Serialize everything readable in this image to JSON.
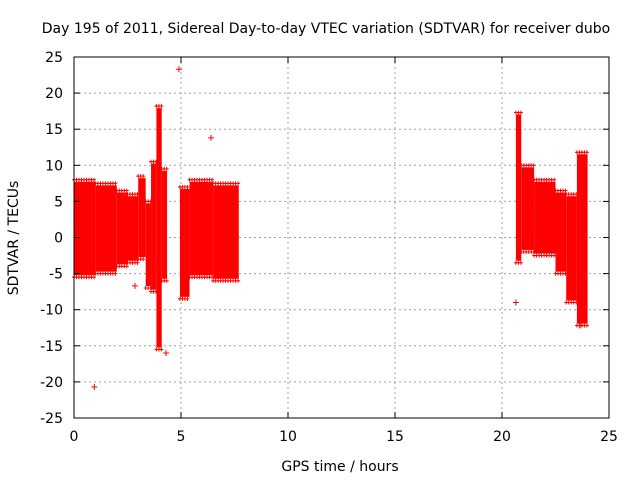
{
  "chart_data": {
    "type": "scatter",
    "title": "Day 195 of 2011, Sidereal Day-to-day VTEC variation (SDTVAR) for receiver dubo",
    "xlabel": "GPS time / hours",
    "ylabel": "SDTVAR / TECUs",
    "xlim": [
      0,
      25
    ],
    "ylim": [
      -25,
      25
    ],
    "xticks": [
      0,
      5,
      10,
      15,
      20,
      25
    ],
    "yticks": [
      -25,
      -20,
      -15,
      -10,
      -5,
      0,
      5,
      10,
      15,
      20,
      25
    ],
    "grid": true,
    "marker": "+",
    "color": "#ff0000",
    "dense_bands": [
      {
        "x_start": 0.0,
        "x_end": 1.0,
        "y_min": -5.5,
        "y_max": 8.0
      },
      {
        "x_start": 1.0,
        "x_end": 2.0,
        "y_min": -5.0,
        "y_max": 7.5
      },
      {
        "x_start": 2.0,
        "x_end": 2.5,
        "y_min": -4.0,
        "y_max": 6.5
      },
      {
        "x_start": 2.5,
        "x_end": 3.0,
        "y_min": -3.5,
        "y_max": 6.0
      },
      {
        "x_start": 3.0,
        "x_end": 3.35,
        "y_min": -3.0,
        "y_max": 8.5
      },
      {
        "x_start": 3.35,
        "x_end": 3.6,
        "y_min": -7.0,
        "y_max": 5.0
      },
      {
        "x_start": 3.6,
        "x_end": 3.85,
        "y_min": -7.5,
        "y_max": 10.5
      },
      {
        "x_start": 3.85,
        "x_end": 4.1,
        "y_min": -15.5,
        "y_max": 18.2
      },
      {
        "x_start": 4.1,
        "x_end": 4.35,
        "y_min": -6.0,
        "y_max": 9.5
      },
      {
        "x_start": 4.95,
        "x_end": 5.4,
        "y_min": -8.5,
        "y_max": 7.0
      },
      {
        "x_start": 5.4,
        "x_end": 6.5,
        "y_min": -5.5,
        "y_max": 8.0
      },
      {
        "x_start": 6.5,
        "x_end": 7.7,
        "y_min": -6.0,
        "y_max": 7.5
      },
      {
        "x_start": 20.65,
        "x_end": 20.9,
        "y_min": -3.5,
        "y_max": 17.3
      },
      {
        "x_start": 20.9,
        "x_end": 21.5,
        "y_min": -2.0,
        "y_max": 10.0
      },
      {
        "x_start": 21.5,
        "x_end": 22.5,
        "y_min": -2.5,
        "y_max": 8.0
      },
      {
        "x_start": 22.5,
        "x_end": 23.0,
        "y_min": -5.0,
        "y_max": 6.5
      },
      {
        "x_start": 23.0,
        "x_end": 23.5,
        "y_min": -9.0,
        "y_max": 6.0
      },
      {
        "x_start": 23.5,
        "x_end": 24.0,
        "y_min": -12.2,
        "y_max": 11.8
      }
    ],
    "outliers": [
      {
        "x": 0.95,
        "y": -20.7
      },
      {
        "x": 4.9,
        "y": 23.3
      },
      {
        "x": 6.4,
        "y": 13.8
      },
      {
        "x": 4.3,
        "y": -16.0
      },
      {
        "x": 2.85,
        "y": -6.7
      },
      {
        "x": 20.65,
        "y": -9.0
      },
      {
        "x": 23.65,
        "y": -12.2
      }
    ]
  }
}
